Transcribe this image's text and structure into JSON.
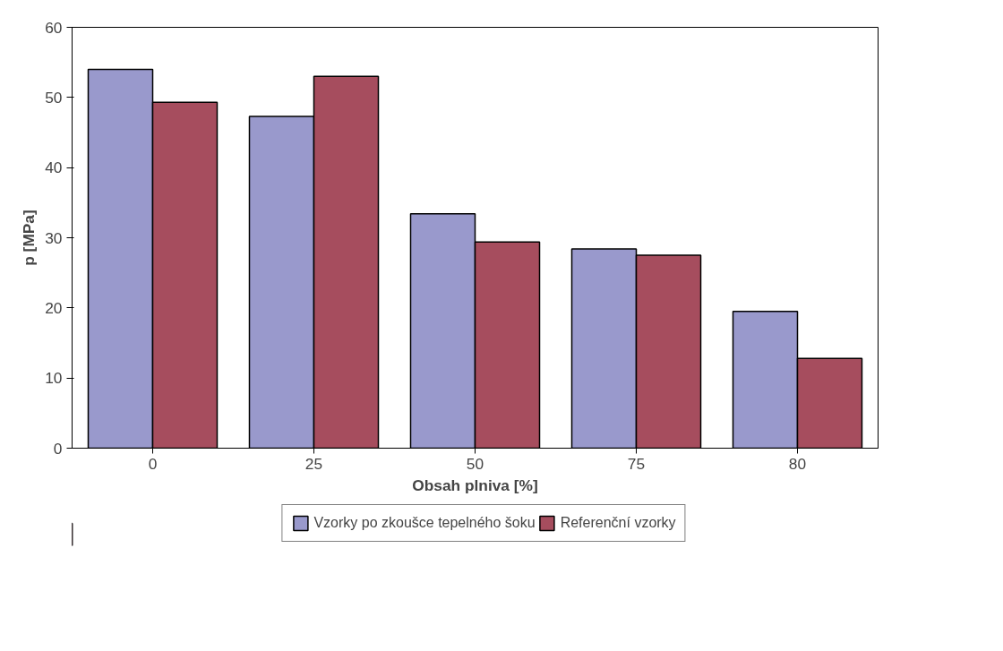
{
  "chart_data": {
    "type": "bar",
    "xlabel": "Obsah plniva [%]",
    "ylabel": "p [MPa]",
    "categories": [
      "0",
      "25",
      "50",
      "75",
      "80"
    ],
    "series": [
      {
        "name": "Vzorky po zkoušce tepelného šoku",
        "color": "#9999cc",
        "values": [
          54,
          47.3,
          33.4,
          28.4,
          19.5
        ]
      },
      {
        "name": "Referenční vzorky",
        "color": "#a64d5e",
        "values": [
          49.3,
          53,
          29.4,
          27.5,
          12.8
        ]
      }
    ],
    "ylim": [
      0,
      60
    ],
    "yticks": [
      0,
      10,
      20,
      30,
      40,
      50,
      60
    ],
    "grid": false,
    "legend": "bottom"
  }
}
